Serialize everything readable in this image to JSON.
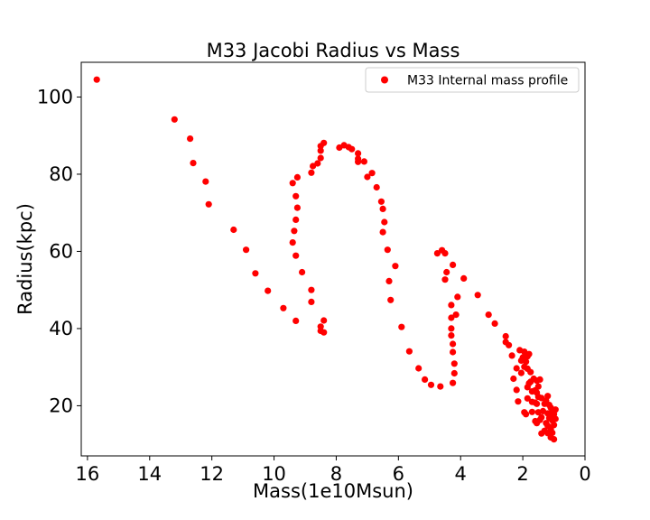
{
  "chart_data": {
    "type": "scatter",
    "title": "M33 Jacobi Radius vs Mass",
    "xlabel": "Mass(1e10Msun)",
    "ylabel": "Radius(kpc)",
    "xlim": [
      16.2,
      0
    ],
    "ylim": [
      7,
      109
    ],
    "x_inverted": true,
    "grid": false,
    "legend_position": "top-right",
    "xticks": [
      16,
      14,
      12,
      10,
      8,
      6,
      4,
      2,
      0
    ],
    "yticks": [
      20,
      40,
      60,
      80,
      100
    ],
    "series": [
      {
        "name": "M33 Internal mass profile",
        "color": "#ff0000",
        "marker": "circle",
        "points": [
          [
            15.7,
            104.5
          ],
          [
            13.2,
            94.2
          ],
          [
            12.7,
            89.2
          ],
          [
            12.6,
            82.9
          ],
          [
            12.2,
            78.1
          ],
          [
            12.1,
            72.2
          ],
          [
            11.3,
            65.6
          ],
          [
            10.9,
            60.4
          ],
          [
            10.6,
            54.3
          ],
          [
            10.2,
            49.8
          ],
          [
            9.7,
            45.3
          ],
          [
            9.3,
            42.0
          ],
          [
            9.4,
            62.3
          ],
          [
            9.35,
            65.3
          ],
          [
            9.3,
            68.2
          ],
          [
            9.25,
            71.3
          ],
          [
            9.3,
            74.3
          ],
          [
            9.4,
            77.7
          ],
          [
            9.25,
            79.2
          ],
          [
            9.3,
            58.9
          ],
          [
            9.1,
            54.6
          ],
          [
            8.8,
            50.0
          ],
          [
            8.8,
            46.9
          ],
          [
            8.5,
            40.5
          ],
          [
            8.5,
            39.4
          ],
          [
            8.4,
            39.0
          ],
          [
            8.4,
            42.1
          ],
          [
            8.8,
            80.4
          ],
          [
            8.75,
            82.1
          ],
          [
            8.6,
            82.8
          ],
          [
            8.5,
            84.2
          ],
          [
            8.5,
            86.1
          ],
          [
            8.5,
            87.3
          ],
          [
            8.4,
            88.1
          ],
          [
            7.9,
            86.9
          ],
          [
            7.75,
            87.5
          ],
          [
            7.6,
            87.0
          ],
          [
            7.5,
            86.5
          ],
          [
            7.3,
            85.4
          ],
          [
            7.3,
            84.0
          ],
          [
            7.3,
            83.2
          ],
          [
            7.1,
            83.3
          ],
          [
            7.0,
            79.3
          ],
          [
            6.85,
            80.3
          ],
          [
            6.7,
            76.6
          ],
          [
            6.55,
            72.9
          ],
          [
            6.5,
            71.0
          ],
          [
            6.45,
            67.6
          ],
          [
            6.5,
            65.0
          ],
          [
            6.35,
            60.4
          ],
          [
            6.3,
            52.3
          ],
          [
            6.25,
            47.4
          ],
          [
            6.1,
            56.2
          ],
          [
            5.9,
            40.4
          ],
          [
            5.65,
            34.1
          ],
          [
            5.35,
            29.7
          ],
          [
            5.15,
            26.8
          ],
          [
            4.95,
            25.4
          ],
          [
            4.65,
            25.0
          ],
          [
            4.75,
            59.5
          ],
          [
            4.6,
            60.3
          ],
          [
            4.5,
            59.5
          ],
          [
            4.5,
            52.7
          ],
          [
            4.45,
            54.6
          ],
          [
            4.25,
            56.5
          ],
          [
            4.3,
            46.1
          ],
          [
            4.3,
            42.8
          ],
          [
            4.3,
            40.0
          ],
          [
            4.3,
            38.2
          ],
          [
            4.25,
            36.0
          ],
          [
            4.25,
            33.9
          ],
          [
            4.2,
            30.9
          ],
          [
            4.15,
            43.6
          ],
          [
            4.1,
            48.2
          ],
          [
            4.2,
            28.4
          ],
          [
            4.25,
            25.9
          ],
          [
            3.9,
            53.0
          ],
          [
            3.45,
            48.7
          ],
          [
            3.1,
            43.6
          ],
          [
            2.9,
            41.3
          ],
          [
            2.55,
            38.0
          ],
          [
            2.55,
            36.5
          ],
          [
            2.45,
            35.7
          ],
          [
            2.35,
            33.0
          ],
          [
            2.3,
            27.0
          ],
          [
            2.2,
            29.7
          ],
          [
            2.2,
            24.1
          ],
          [
            2.15,
            21.1
          ],
          [
            2.1,
            34.4
          ],
          [
            2.05,
            28.5
          ],
          [
            2.05,
            31.7
          ],
          [
            2.0,
            32.5
          ],
          [
            1.95,
            30.1
          ],
          [
            1.95,
            34.0
          ],
          [
            1.9,
            33.3
          ],
          [
            1.9,
            31.4
          ],
          [
            1.85,
            32.8
          ],
          [
            1.85,
            29.6
          ],
          [
            1.95,
            18.3
          ],
          [
            1.9,
            17.8
          ],
          [
            1.85,
            21.9
          ],
          [
            1.85,
            24.8
          ],
          [
            1.8,
            25.8
          ],
          [
            1.8,
            33.4
          ],
          [
            1.75,
            28.7
          ],
          [
            1.75,
            26.2
          ],
          [
            1.7,
            23.7
          ],
          [
            1.7,
            21.0
          ],
          [
            1.7,
            18.4
          ],
          [
            1.65,
            27.0
          ],
          [
            1.6,
            24.0
          ],
          [
            1.6,
            20.8
          ],
          [
            1.6,
            16.0
          ],
          [
            1.55,
            26.5
          ],
          [
            1.55,
            23.4
          ],
          [
            1.55,
            20.5
          ],
          [
            1.55,
            15.5
          ],
          [
            1.5,
            25.0
          ],
          [
            1.5,
            22.3
          ],
          [
            1.5,
            18.3
          ],
          [
            1.45,
            26.8
          ],
          [
            1.45,
            16.3
          ],
          [
            1.4,
            22.0
          ],
          [
            1.4,
            17.0
          ],
          [
            1.4,
            12.8
          ],
          [
            1.35,
            18.6
          ],
          [
            1.3,
            20.5
          ],
          [
            1.3,
            13.5
          ],
          [
            1.25,
            21.3
          ],
          [
            1.25,
            15.5
          ],
          [
            1.2,
            22.5
          ],
          [
            1.2,
            18.0
          ],
          [
            1.2,
            14.8
          ],
          [
            1.2,
            12.9
          ],
          [
            1.15,
            20.2
          ],
          [
            1.15,
            16.8
          ],
          [
            1.1,
            19.5
          ],
          [
            1.1,
            17.5
          ],
          [
            1.1,
            14.0
          ],
          [
            1.1,
            11.8
          ],
          [
            1.05,
            18.5
          ],
          [
            1.05,
            16.2
          ],
          [
            1.05,
            13.0
          ],
          [
            1.0,
            17.8
          ],
          [
            1.0,
            15.0
          ],
          [
            1.0,
            11.3
          ],
          [
            0.95,
            19.0
          ],
          [
            0.95,
            16.6
          ]
        ]
      }
    ]
  }
}
